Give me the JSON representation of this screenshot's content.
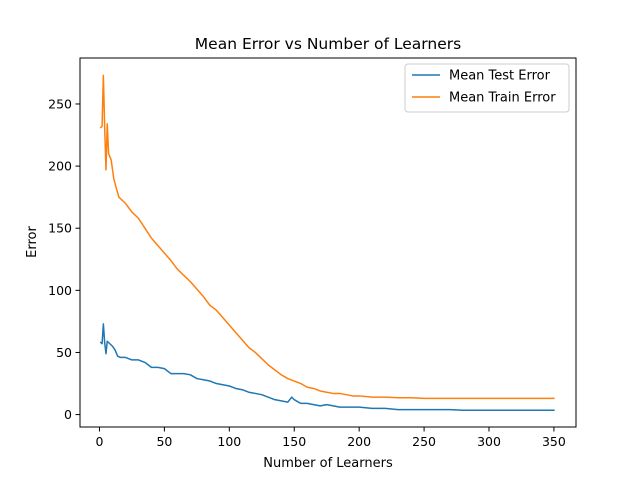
{
  "chart_data": {
    "type": "line",
    "title": "Mean Error vs Number of Learners",
    "xlabel": "Number of Learners",
    "ylabel": "Error",
    "xlim": [
      -15,
      367
    ],
    "ylim": [
      -10,
      287
    ],
    "xticks": [
      0,
      50,
      100,
      150,
      200,
      250,
      300,
      350
    ],
    "yticks": [
      0,
      50,
      100,
      150,
      200,
      250
    ],
    "legend_position": "top-right",
    "grid": false,
    "series": [
      {
        "name": "Mean Test Error",
        "color": "#1f77b4",
        "points": [
          [
            1,
            58
          ],
          [
            2,
            57
          ],
          [
            3,
            73
          ],
          [
            4,
            58
          ],
          [
            5,
            49
          ],
          [
            6,
            59
          ],
          [
            8,
            57
          ],
          [
            10,
            55
          ],
          [
            12,
            52
          ],
          [
            14,
            47
          ],
          [
            16,
            46
          ],
          [
            20,
            46
          ],
          [
            25,
            44
          ],
          [
            30,
            44
          ],
          [
            35,
            42
          ],
          [
            40,
            38
          ],
          [
            45,
            38
          ],
          [
            50,
            37
          ],
          [
            55,
            33
          ],
          [
            60,
            33
          ],
          [
            65,
            33
          ],
          [
            70,
            32
          ],
          [
            75,
            29
          ],
          [
            80,
            28
          ],
          [
            85,
            27
          ],
          [
            90,
            25
          ],
          [
            95,
            24
          ],
          [
            100,
            23
          ],
          [
            105,
            21
          ],
          [
            110,
            20
          ],
          [
            115,
            18
          ],
          [
            120,
            17
          ],
          [
            125,
            16
          ],
          [
            130,
            14
          ],
          [
            135,
            12
          ],
          [
            140,
            11
          ],
          [
            145,
            10
          ],
          [
            148,
            14
          ],
          [
            150,
            12
          ],
          [
            155,
            9
          ],
          [
            160,
            9
          ],
          [
            165,
            8
          ],
          [
            170,
            7
          ],
          [
            175,
            8
          ],
          [
            180,
            7
          ],
          [
            185,
            6
          ],
          [
            190,
            6
          ],
          [
            200,
            6
          ],
          [
            210,
            5
          ],
          [
            220,
            5
          ],
          [
            230,
            4
          ],
          [
            240,
            4
          ],
          [
            250,
            4
          ],
          [
            260,
            4
          ],
          [
            270,
            4
          ],
          [
            280,
            3.5
          ],
          [
            290,
            3.5
          ],
          [
            300,
            3.5
          ],
          [
            310,
            3.5
          ],
          [
            320,
            3.5
          ],
          [
            330,
            3.5
          ],
          [
            340,
            3.5
          ],
          [
            350,
            3.5
          ]
        ]
      },
      {
        "name": "Mean Train Error",
        "color": "#ff7f0e",
        "points": [
          [
            1,
            231
          ],
          [
            2,
            232
          ],
          [
            3,
            273
          ],
          [
            4,
            231
          ],
          [
            5,
            197
          ],
          [
            6,
            234
          ],
          [
            7,
            210
          ],
          [
            9,
            205
          ],
          [
            11,
            190
          ],
          [
            13,
            182
          ],
          [
            15,
            175
          ],
          [
            18,
            172
          ],
          [
            20,
            170
          ],
          [
            25,
            163
          ],
          [
            30,
            158
          ],
          [
            35,
            150
          ],
          [
            40,
            142
          ],
          [
            45,
            136
          ],
          [
            50,
            130
          ],
          [
            55,
            124
          ],
          [
            60,
            117
          ],
          [
            65,
            112
          ],
          [
            70,
            107
          ],
          [
            75,
            101
          ],
          [
            80,
            95
          ],
          [
            85,
            88
          ],
          [
            90,
            84
          ],
          [
            95,
            78
          ],
          [
            100,
            72
          ],
          [
            105,
            66
          ],
          [
            110,
            60
          ],
          [
            115,
            54
          ],
          [
            120,
            50
          ],
          [
            125,
            45
          ],
          [
            130,
            40
          ],
          [
            135,
            36
          ],
          [
            140,
            32
          ],
          [
            145,
            29
          ],
          [
            150,
            27
          ],
          [
            155,
            25
          ],
          [
            160,
            22
          ],
          [
            165,
            21
          ],
          [
            170,
            19
          ],
          [
            175,
            18
          ],
          [
            180,
            17
          ],
          [
            185,
            17
          ],
          [
            190,
            16
          ],
          [
            195,
            15
          ],
          [
            200,
            15
          ],
          [
            210,
            14
          ],
          [
            220,
            14
          ],
          [
            230,
            13.5
          ],
          [
            240,
            13.5
          ],
          [
            250,
            13
          ],
          [
            260,
            13
          ],
          [
            270,
            13
          ],
          [
            280,
            13
          ],
          [
            290,
            13
          ],
          [
            300,
            13
          ],
          [
            310,
            13
          ],
          [
            320,
            13
          ],
          [
            330,
            13
          ],
          [
            340,
            13
          ],
          [
            350,
            13
          ]
        ]
      }
    ]
  }
}
